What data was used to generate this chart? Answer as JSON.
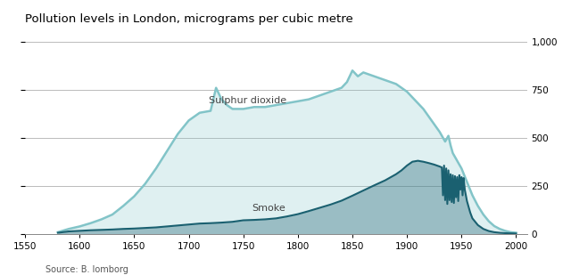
{
  "title": "Pollution levels in London, micrograms per cubic metre",
  "source": "Source: B. lomborg",
  "xlim": [
    1550,
    2010
  ],
  "ylim": [
    0,
    1050
  ],
  "xticks": [
    1550,
    1600,
    1650,
    1700,
    1750,
    1800,
    1850,
    1900,
    1950,
    2000
  ],
  "yticks": [
    0,
    250,
    500,
    750,
    1000
  ],
  "bg_color": "#f0f0f0",
  "so2_color": "#82c4c8",
  "smoke_color": "#1a6070",
  "so2_label": "Sulphur dioxide",
  "smoke_label": "Smoke",
  "so2_data": [
    [
      1580,
      8
    ],
    [
      1590,
      25
    ],
    [
      1600,
      38
    ],
    [
      1610,
      55
    ],
    [
      1620,
      75
    ],
    [
      1630,
      100
    ],
    [
      1640,
      145
    ],
    [
      1650,
      195
    ],
    [
      1660,
      260
    ],
    [
      1670,
      340
    ],
    [
      1680,
      430
    ],
    [
      1690,
      520
    ],
    [
      1700,
      590
    ],
    [
      1710,
      630
    ],
    [
      1720,
      640
    ],
    [
      1725,
      760
    ],
    [
      1730,
      700
    ],
    [
      1735,
      670
    ],
    [
      1740,
      650
    ],
    [
      1750,
      650
    ],
    [
      1760,
      660
    ],
    [
      1770,
      660
    ],
    [
      1780,
      670
    ],
    [
      1790,
      680
    ],
    [
      1800,
      690
    ],
    [
      1810,
      700
    ],
    [
      1820,
      720
    ],
    [
      1830,
      740
    ],
    [
      1840,
      760
    ],
    [
      1845,
      790
    ],
    [
      1850,
      850
    ],
    [
      1855,
      820
    ],
    [
      1860,
      840
    ],
    [
      1865,
      830
    ],
    [
      1870,
      820
    ],
    [
      1875,
      810
    ],
    [
      1880,
      800
    ],
    [
      1885,
      790
    ],
    [
      1890,
      780
    ],
    [
      1895,
      760
    ],
    [
      1900,
      740
    ],
    [
      1905,
      710
    ],
    [
      1910,
      680
    ],
    [
      1915,
      650
    ],
    [
      1920,
      610
    ],
    [
      1925,
      570
    ],
    [
      1930,
      530
    ],
    [
      1933,
      500
    ],
    [
      1935,
      480
    ],
    [
      1938,
      510
    ],
    [
      1940,
      460
    ],
    [
      1942,
      420
    ],
    [
      1945,
      390
    ],
    [
      1950,
      340
    ],
    [
      1955,
      270
    ],
    [
      1960,
      200
    ],
    [
      1965,
      145
    ],
    [
      1970,
      100
    ],
    [
      1975,
      65
    ],
    [
      1980,
      40
    ],
    [
      1985,
      25
    ],
    [
      1990,
      15
    ],
    [
      1995,
      8
    ],
    [
      2000,
      5
    ]
  ],
  "smoke_data": [
    [
      1580,
      5
    ],
    [
      1590,
      12
    ],
    [
      1600,
      15
    ],
    [
      1610,
      18
    ],
    [
      1620,
      20
    ],
    [
      1630,
      22
    ],
    [
      1640,
      25
    ],
    [
      1650,
      27
    ],
    [
      1660,
      30
    ],
    [
      1670,
      33
    ],
    [
      1680,
      38
    ],
    [
      1690,
      43
    ],
    [
      1700,
      48
    ],
    [
      1710,
      53
    ],
    [
      1720,
      55
    ],
    [
      1730,
      58
    ],
    [
      1740,
      62
    ],
    [
      1750,
      70
    ],
    [
      1760,
      72
    ],
    [
      1770,
      75
    ],
    [
      1780,
      80
    ],
    [
      1790,
      90
    ],
    [
      1800,
      102
    ],
    [
      1810,
      118
    ],
    [
      1820,
      135
    ],
    [
      1830,
      152
    ],
    [
      1840,
      172
    ],
    [
      1850,
      198
    ],
    [
      1860,
      225
    ],
    [
      1870,
      252
    ],
    [
      1880,
      278
    ],
    [
      1890,
      310
    ],
    [
      1895,
      330
    ],
    [
      1900,
      355
    ],
    [
      1905,
      375
    ],
    [
      1910,
      380
    ],
    [
      1915,
      375
    ],
    [
      1920,
      368
    ],
    [
      1925,
      360
    ],
    [
      1930,
      350
    ],
    [
      1932,
      345
    ],
    [
      1933,
      200
    ],
    [
      1934,
      355
    ],
    [
      1935,
      175
    ],
    [
      1936,
      340
    ],
    [
      1937,
      155
    ],
    [
      1938,
      330
    ],
    [
      1939,
      175
    ],
    [
      1940,
      310
    ],
    [
      1941,
      165
    ],
    [
      1942,
      305
    ],
    [
      1943,
      160
    ],
    [
      1944,
      300
    ],
    [
      1945,
      190
    ],
    [
      1946,
      295
    ],
    [
      1947,
      170
    ],
    [
      1948,
      305
    ],
    [
      1949,
      230
    ],
    [
      1950,
      295
    ],
    [
      1951,
      200
    ],
    [
      1952,
      290
    ],
    [
      1953,
      230
    ],
    [
      1954,
      200
    ],
    [
      1955,
      170
    ],
    [
      1956,
      150
    ],
    [
      1957,
      130
    ],
    [
      1958,
      110
    ],
    [
      1960,
      80
    ],
    [
      1965,
      45
    ],
    [
      1970,
      25
    ],
    [
      1975,
      14
    ],
    [
      1980,
      8
    ],
    [
      1985,
      5
    ],
    [
      1990,
      3
    ],
    [
      1995,
      2
    ],
    [
      2000,
      1
    ]
  ]
}
